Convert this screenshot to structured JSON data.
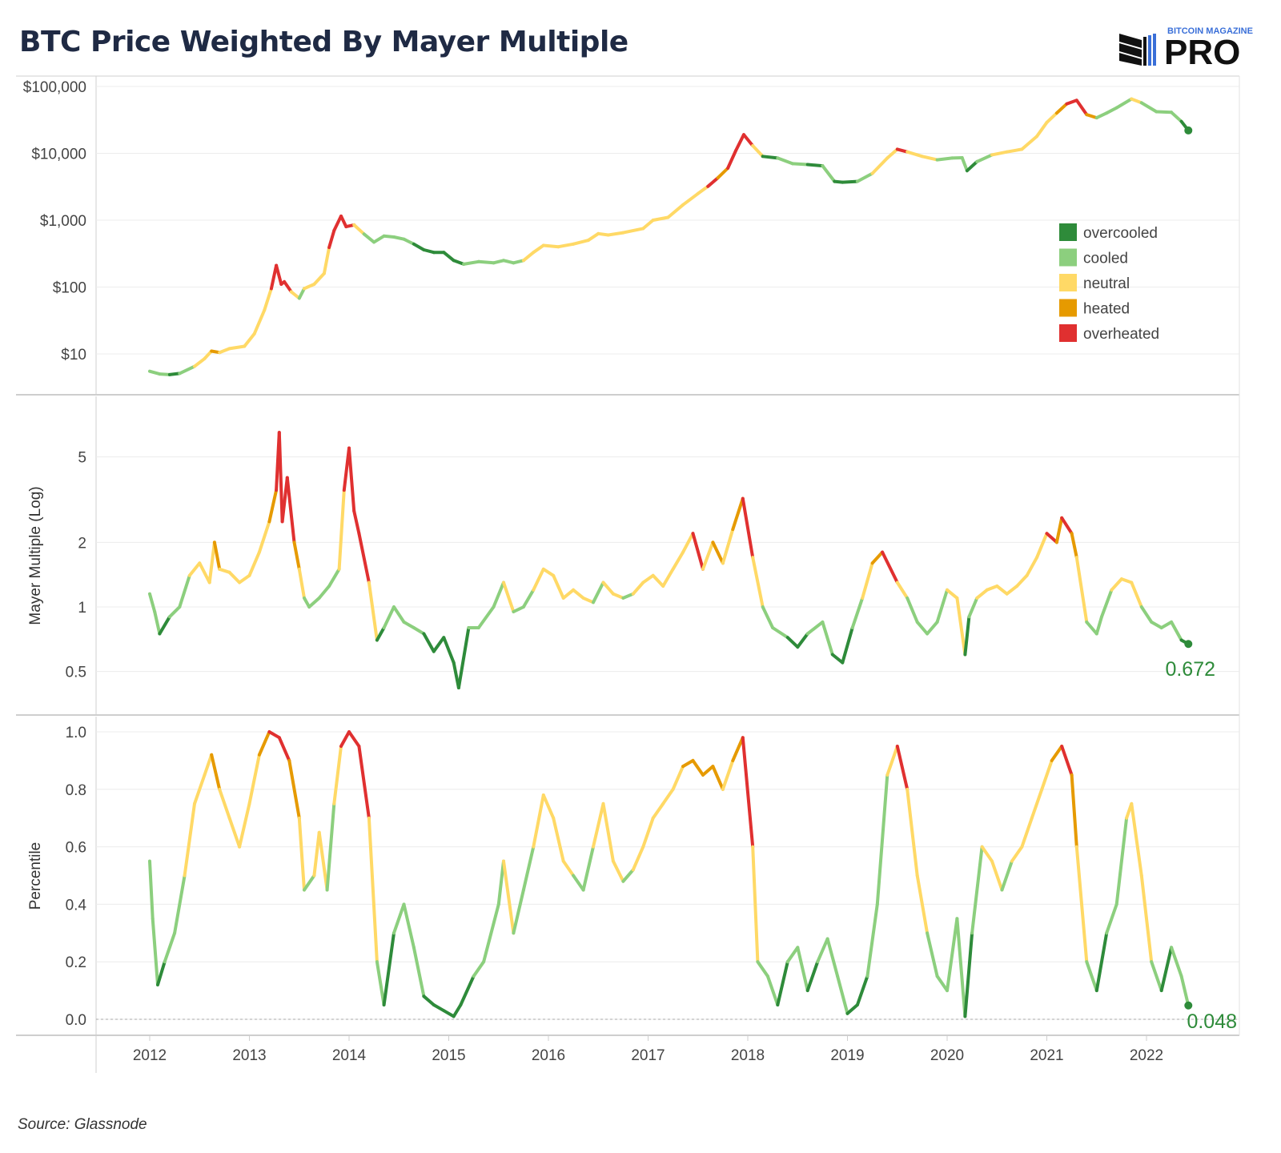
{
  "title": "BTC Price Weighted By Mayer Multiple",
  "logo": {
    "line1": "BITCOIN MAGAZINE",
    "line2": "PRO"
  },
  "source": "Source: Glassnode",
  "colors": {
    "overcooled": "#2e8b3a",
    "cooled": "#8ccf7e",
    "neutral": "#ffd966",
    "heated": "#e69a00",
    "overheated": "#e03030",
    "latest_value": "#2e8b3a"
  },
  "chart_data": [
    {
      "type": "line",
      "panel": "price",
      "y_scale": "log",
      "ylim": [
        5,
        120000
      ],
      "y_ticks": [
        10,
        100,
        1000,
        10000,
        100000
      ],
      "y_tick_labels": [
        "$10",
        "$100",
        "$1,000",
        "$10,000",
        "$100,000"
      ],
      "xlim": [
        2012.0,
        2022.5
      ],
      "legend": {
        "placement": "right",
        "items": [
          {
            "label": "overcooled",
            "color": "#2e8b3a"
          },
          {
            "label": "cooled",
            "color": "#8ccf7e"
          },
          {
            "label": "neutral",
            "color": "#ffd966"
          },
          {
            "label": "heated",
            "color": "#e69a00"
          },
          {
            "label": "overheated",
            "color": "#e03030"
          }
        ]
      },
      "x": [
        2012.0,
        2012.1,
        2012.2,
        2012.3,
        2012.45,
        2012.55,
        2012.62,
        2012.7,
        2012.8,
        2012.95,
        2013.05,
        2013.15,
        2013.22,
        2013.27,
        2013.32,
        2013.35,
        2013.42,
        2013.5,
        2013.55,
        2013.65,
        2013.75,
        2013.8,
        2013.85,
        2013.92,
        2013.97,
        2014.05,
        2014.15,
        2014.25,
        2014.35,
        2014.45,
        2014.55,
        2014.65,
        2014.75,
        2014.85,
        2014.95,
        2015.05,
        2015.15,
        2015.3,
        2015.45,
        2015.55,
        2015.65,
        2015.75,
        2015.85,
        2015.95,
        2016.1,
        2016.25,
        2016.4,
        2016.5,
        2016.6,
        2016.75,
        2016.95,
        2017.05,
        2017.2,
        2017.35,
        2017.5,
        2017.6,
        2017.7,
        2017.8,
        2017.88,
        2017.96,
        2018.05,
        2018.15,
        2018.3,
        2018.45,
        2018.6,
        2018.75,
        2018.87,
        2018.95,
        2019.1,
        2019.25,
        2019.4,
        2019.5,
        2019.6,
        2019.75,
        2019.9,
        2020.05,
        2020.15,
        2020.2,
        2020.3,
        2020.45,
        2020.6,
        2020.75,
        2020.9,
        2021.0,
        2021.1,
        2021.2,
        2021.3,
        2021.4,
        2021.5,
        2021.6,
        2021.7,
        2021.85,
        2021.95,
        2022.1,
        2022.25,
        2022.35,
        2022.42
      ],
      "y": [
        5.5,
        5,
        4.9,
        5.1,
        6.5,
        8.5,
        11,
        10.5,
        12,
        13,
        20,
        45,
        95,
        210,
        110,
        120,
        85,
        68,
        95,
        110,
        160,
        390,
        700,
        1150,
        800,
        850,
        620,
        470,
        580,
        560,
        520,
        440,
        360,
        330,
        330,
        250,
        220,
        240,
        230,
        250,
        230,
        250,
        330,
        420,
        400,
        440,
        500,
        630,
        600,
        650,
        750,
        1000,
        1100,
        1700,
        2500,
        3200,
        4300,
        6000,
        11000,
        19000,
        13000,
        9000,
        8500,
        7000,
        6800,
        6500,
        3800,
        3700,
        3800,
        5000,
        8500,
        11500,
        10500,
        9000,
        8000,
        8500,
        8600,
        5500,
        7500,
        9500,
        10500,
        11500,
        18000,
        29000,
        40000,
        55000,
        62000,
        38000,
        34000,
        40000,
        48000,
        65000,
        57000,
        42000,
        41000,
        30000,
        22000
      ],
      "zones": [
        1,
        1,
        0,
        1,
        2,
        2,
        3,
        2,
        2,
        2,
        2,
        2,
        4,
        4,
        4,
        4,
        2,
        1,
        2,
        2,
        2,
        4,
        4,
        4,
        4,
        2,
        1,
        1,
        1,
        1,
        1,
        0,
        0,
        0,
        0,
        0,
        1,
        1,
        1,
        1,
        1,
        2,
        2,
        2,
        2,
        2,
        2,
        2,
        2,
        2,
        2,
        2,
        2,
        2,
        2,
        4,
        3,
        4,
        4,
        4,
        2,
        0,
        1,
        1,
        0,
        1,
        0,
        0,
        1,
        2,
        2,
        4,
        2,
        2,
        1,
        1,
        1,
        0,
        1,
        2,
        2,
        2,
        2,
        2,
        3,
        4,
        4,
        3,
        1,
        1,
        1,
        2,
        1,
        1,
        1,
        0,
        0
      ]
    },
    {
      "type": "line",
      "panel": "mayer_multiple",
      "ylabel": "Mayer Multiple (Log)",
      "y_scale": "log",
      "ylim": [
        0.38,
        8.5
      ],
      "y_ticks": [
        0.5,
        1,
        2,
        5
      ],
      "y_tick_labels": [
        "0.5",
        "1",
        "2",
        "5"
      ],
      "xlim": [
        2012.0,
        2022.5
      ],
      "latest_label": "0.672",
      "x": [
        2012.0,
        2012.05,
        2012.1,
        2012.2,
        2012.3,
        2012.4,
        2012.5,
        2012.6,
        2012.65,
        2012.7,
        2012.8,
        2012.9,
        2013.0,
        2013.1,
        2013.2,
        2013.27,
        2013.3,
        2013.33,
        2013.38,
        2013.45,
        2013.5,
        2013.55,
        2013.6,
        2013.7,
        2013.8,
        2013.9,
        2013.95,
        2014.0,
        2014.05,
        2014.1,
        2014.2,
        2014.28,
        2014.35,
        2014.45,
        2014.55,
        2014.65,
        2014.75,
        2014.85,
        2014.95,
        2015.05,
        2015.1,
        2015.2,
        2015.3,
        2015.45,
        2015.55,
        2015.65,
        2015.75,
        2015.85,
        2015.95,
        2016.05,
        2016.15,
        2016.25,
        2016.35,
        2016.45,
        2016.55,
        2016.65,
        2016.75,
        2016.85,
        2016.95,
        2017.05,
        2017.15,
        2017.25,
        2017.35,
        2017.45,
        2017.55,
        2017.65,
        2017.75,
        2017.85,
        2017.95,
        2018.05,
        2018.15,
        2018.25,
        2018.4,
        2018.5,
        2018.6,
        2018.75,
        2018.85,
        2018.95,
        2019.05,
        2019.15,
        2019.25,
        2019.35,
        2019.5,
        2019.6,
        2019.7,
        2019.8,
        2019.9,
        2020.0,
        2020.1,
        2020.18,
        2020.22,
        2020.3,
        2020.4,
        2020.5,
        2020.6,
        2020.7,
        2020.8,
        2020.9,
        2021.0,
        2021.1,
        2021.15,
        2021.25,
        2021.3,
        2021.4,
        2021.5,
        2021.55,
        2021.65,
        2021.75,
        2021.85,
        2021.95,
        2022.05,
        2022.15,
        2022.25,
        2022.35,
        2022.42
      ],
      "y": [
        1.15,
        0.95,
        0.75,
        0.9,
        1.0,
        1.4,
        1.6,
        1.3,
        2.0,
        1.5,
        1.45,
        1.3,
        1.4,
        1.8,
        2.5,
        3.5,
        6.5,
        2.5,
        4.0,
        2.0,
        1.5,
        1.1,
        1.0,
        1.1,
        1.25,
        1.5,
        3.5,
        5.5,
        2.8,
        2.2,
        1.3,
        0.7,
        0.8,
        1.0,
        0.85,
        0.8,
        0.75,
        0.62,
        0.72,
        0.55,
        0.42,
        0.8,
        0.8,
        1.0,
        1.3,
        0.95,
        1.0,
        1.2,
        1.5,
        1.4,
        1.1,
        1.2,
        1.1,
        1.05,
        1.3,
        1.15,
        1.1,
        1.15,
        1.3,
        1.4,
        1.25,
        1.5,
        1.8,
        2.2,
        1.5,
        2.0,
        1.6,
        2.3,
        3.2,
        1.7,
        1.0,
        0.8,
        0.72,
        0.65,
        0.75,
        0.85,
        0.6,
        0.55,
        0.8,
        1.1,
        1.6,
        1.8,
        1.3,
        1.1,
        0.85,
        0.75,
        0.85,
        1.2,
        1.1,
        0.6,
        0.9,
        1.1,
        1.2,
        1.25,
        1.15,
        1.25,
        1.4,
        1.7,
        2.2,
        2.0,
        2.6,
        2.2,
        1.7,
        0.85,
        0.75,
        0.9,
        1.2,
        1.35,
        1.3,
        1.0,
        0.85,
        0.8,
        0.85,
        0.7,
        0.672
      ],
      "zones": [
        1,
        1,
        0,
        1,
        1,
        2,
        2,
        2,
        3,
        2,
        2,
        2,
        2,
        2,
        3,
        4,
        4,
        4,
        4,
        3,
        2,
        1,
        1,
        1,
        1,
        2,
        4,
        4,
        4,
        4,
        2,
        0,
        1,
        1,
        1,
        1,
        0,
        0,
        0,
        0,
        0,
        1,
        1,
        1,
        2,
        1,
        1,
        2,
        2,
        2,
        2,
        2,
        2,
        1,
        2,
        2,
        1,
        2,
        2,
        2,
        2,
        2,
        2,
        4,
        2,
        3,
        2,
        3,
        4,
        2,
        1,
        1,
        0,
        0,
        1,
        1,
        0,
        0,
        1,
        2,
        3,
        4,
        2,
        1,
        1,
        1,
        1,
        2,
        2,
        0,
        1,
        2,
        2,
        2,
        2,
        2,
        2,
        2,
        4,
        3,
        4,
        3,
        2,
        1,
        1,
        1,
        2,
        2,
        2,
        1,
        1,
        1,
        1,
        0,
        0
      ]
    },
    {
      "type": "line",
      "panel": "percentile",
      "ylabel": "Percentile",
      "ylim": [
        0,
        1.0
      ],
      "y_ticks": [
        0.0,
        0.2,
        0.4,
        0.6,
        0.8,
        1.0
      ],
      "y_tick_labels": [
        "0.0",
        "0.2",
        "0.4",
        "0.6",
        "0.8",
        "1.0"
      ],
      "xlim": [
        2012.0,
        2022.5
      ],
      "x_ticks": [
        2012,
        2013,
        2014,
        2015,
        2016,
        2017,
        2018,
        2019,
        2020,
        2021,
        2022
      ],
      "x_tick_labels": [
        "2012",
        "2013",
        "2014",
        "2015",
        "2016",
        "2017",
        "2018",
        "2019",
        "2020",
        "2021",
        "2022"
      ],
      "latest_label": "0.048",
      "x": [
        2012.0,
        2012.03,
        2012.08,
        2012.15,
        2012.25,
        2012.35,
        2012.45,
        2012.55,
        2012.62,
        2012.7,
        2012.8,
        2012.9,
        2013.0,
        2013.1,
        2013.2,
        2013.3,
        2013.4,
        2013.5,
        2013.55,
        2013.65,
        2013.7,
        2013.78,
        2013.85,
        2013.92,
        2014.0,
        2014.1,
        2014.2,
        2014.28,
        2014.35,
        2014.45,
        2014.55,
        2014.65,
        2014.75,
        2014.85,
        2014.95,
        2015.05,
        2015.12,
        2015.25,
        2015.35,
        2015.5,
        2015.55,
        2015.65,
        2015.75,
        2015.85,
        2015.95,
        2016.05,
        2016.15,
        2016.25,
        2016.35,
        2016.45,
        2016.55,
        2016.65,
        2016.75,
        2016.85,
        2016.95,
        2017.05,
        2017.15,
        2017.25,
        2017.35,
        2017.45,
        2017.55,
        2017.65,
        2017.75,
        2017.85,
        2017.95,
        2018.05,
        2018.1,
        2018.2,
        2018.3,
        2018.4,
        2018.5,
        2018.6,
        2018.7,
        2018.8,
        2018.9,
        2019.0,
        2019.1,
        2019.2,
        2019.3,
        2019.4,
        2019.5,
        2019.6,
        2019.7,
        2019.8,
        2019.9,
        2020.0,
        2020.1,
        2020.18,
        2020.25,
        2020.35,
        2020.45,
        2020.55,
        2020.65,
        2020.75,
        2020.85,
        2020.95,
        2021.05,
        2021.15,
        2021.25,
        2021.3,
        2021.4,
        2021.5,
        2021.6,
        2021.7,
        2021.8,
        2021.85,
        2021.95,
        2022.05,
        2022.15,
        2022.25,
        2022.35,
        2022.42
      ],
      "y": [
        0.55,
        0.35,
        0.12,
        0.2,
        0.3,
        0.5,
        0.75,
        0.85,
        0.92,
        0.8,
        0.7,
        0.6,
        0.75,
        0.92,
        1.0,
        0.98,
        0.9,
        0.7,
        0.45,
        0.5,
        0.65,
        0.45,
        0.75,
        0.95,
        1.0,
        0.95,
        0.7,
        0.2,
        0.05,
        0.3,
        0.4,
        0.25,
        0.08,
        0.05,
        0.03,
        0.01,
        0.05,
        0.15,
        0.2,
        0.4,
        0.55,
        0.3,
        0.45,
        0.6,
        0.78,
        0.7,
        0.55,
        0.5,
        0.45,
        0.6,
        0.75,
        0.55,
        0.48,
        0.52,
        0.6,
        0.7,
        0.75,
        0.8,
        0.88,
        0.9,
        0.85,
        0.88,
        0.8,
        0.9,
        0.98,
        0.6,
        0.2,
        0.15,
        0.05,
        0.2,
        0.25,
        0.1,
        0.2,
        0.28,
        0.15,
        0.02,
        0.05,
        0.15,
        0.4,
        0.85,
        0.95,
        0.8,
        0.5,
        0.3,
        0.15,
        0.1,
        0.35,
        0.01,
        0.3,
        0.6,
        0.55,
        0.45,
        0.55,
        0.6,
        0.7,
        0.8,
        0.9,
        0.95,
        0.85,
        0.6,
        0.2,
        0.1,
        0.3,
        0.4,
        0.7,
        0.75,
        0.5,
        0.2,
        0.1,
        0.25,
        0.15,
        0.048
      ],
      "zones": [
        1,
        1,
        0,
        1,
        1,
        2,
        2,
        2,
        3,
        2,
        2,
        2,
        2,
        3,
        4,
        4,
        3,
        2,
        1,
        2,
        2,
        1,
        2,
        4,
        4,
        4,
        2,
        1,
        0,
        1,
        1,
        1,
        0,
        0,
        0,
        0,
        0,
        1,
        1,
        1,
        2,
        1,
        1,
        2,
        2,
        2,
        2,
        1,
        1,
        2,
        2,
        2,
        1,
        2,
        2,
        2,
        2,
        2,
        3,
        3,
        3,
        3,
        2,
        3,
        4,
        2,
        1,
        1,
        0,
        1,
        1,
        0,
        1,
        1,
        1,
        0,
        0,
        1,
        1,
        2,
        4,
        2,
        2,
        1,
        1,
        1,
        1,
        0,
        1,
        2,
        2,
        1,
        2,
        2,
        2,
        2,
        3,
        4,
        3,
        2,
        1,
        0,
        1,
        1,
        2,
        2,
        2,
        1,
        0,
        1,
        1,
        0
      ]
    }
  ]
}
